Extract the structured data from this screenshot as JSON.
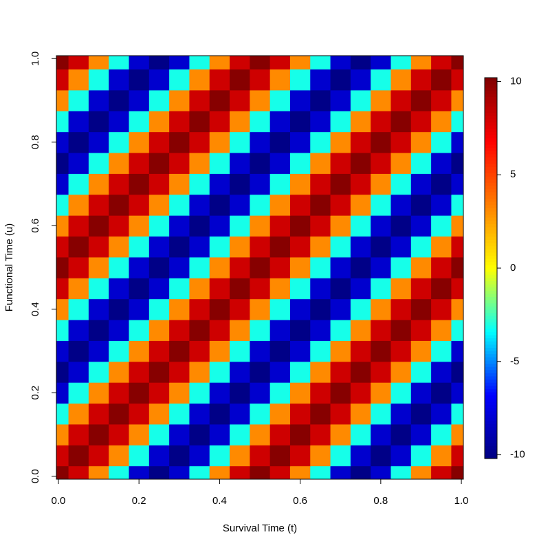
{
  "chart_data": {
    "type": "heatmap",
    "x_label": "Survival Time (t)",
    "y_label": "Functional Time (u)",
    "x": [
      0,
      0.05,
      0.1,
      0.15,
      0.2,
      0.25,
      0.3,
      0.35,
      0.4,
      0.45,
      0.5,
      0.55,
      0.6,
      0.65,
      0.7,
      0.75,
      0.8,
      0.85,
      0.9,
      0.95,
      1
    ],
    "y": [
      0,
      0.05,
      0.1,
      0.15,
      0.2,
      0.25,
      0.3,
      0.35,
      0.4,
      0.45,
      0.5,
      0.55,
      0.6,
      0.65,
      0.7,
      0.75,
      0.8,
      0.85,
      0.9,
      0.95,
      1
    ],
    "z": [
      [
        10,
        8.1,
        3.1,
        -3.1,
        -8.1,
        -10,
        -8.1,
        -3.1,
        3.1,
        8.1,
        10,
        8.1,
        3.1,
        -3.1,
        -8.1,
        -10,
        -8.1,
        -3.1,
        3.1,
        8.1,
        10
      ],
      [
        8.1,
        10,
        8.1,
        3.1,
        -3.1,
        -8.1,
        -10,
        -8.1,
        -3.1,
        3.1,
        8.1,
        10,
        8.1,
        3.1,
        -3.1,
        -8.1,
        -10,
        -8.1,
        -3.1,
        3.1,
        8.1
      ],
      [
        3.1,
        8.1,
        10,
        8.1,
        3.1,
        -3.1,
        -8.1,
        -10,
        -8.1,
        -3.1,
        3.1,
        8.1,
        10,
        8.1,
        3.1,
        -3.1,
        -8.1,
        -10,
        -8.1,
        -3.1,
        3.1
      ],
      [
        -3.1,
        3.1,
        8.1,
        10,
        8.1,
        3.1,
        -3.1,
        -8.1,
        -10,
        -8.1,
        -3.1,
        3.1,
        8.1,
        10,
        8.1,
        3.1,
        -3.1,
        -8.1,
        -10,
        -8.1,
        -3.1
      ],
      [
        -8.1,
        -3.1,
        3.1,
        8.1,
        10,
        8.1,
        3.1,
        -3.1,
        -8.1,
        -10,
        -8.1,
        -3.1,
        3.1,
        8.1,
        10,
        8.1,
        3.1,
        -3.1,
        -8.1,
        -10,
        -8.1
      ],
      [
        -10,
        -8.1,
        -3.1,
        3.1,
        8.1,
        10,
        8.1,
        3.1,
        -3.1,
        -8.1,
        -10,
        -8.1,
        -3.1,
        3.1,
        8.1,
        10,
        8.1,
        3.1,
        -3.1,
        -8.1,
        -10
      ],
      [
        -8.1,
        -10,
        -8.1,
        -3.1,
        3.1,
        8.1,
        10,
        8.1,
        3.1,
        -3.1,
        -8.1,
        -10,
        -8.1,
        -3.1,
        3.1,
        8.1,
        10,
        8.1,
        3.1,
        -3.1,
        -8.1
      ],
      [
        -3.1,
        -8.1,
        -10,
        -8.1,
        -3.1,
        3.1,
        8.1,
        10,
        8.1,
        3.1,
        -3.1,
        -8.1,
        -10,
        -8.1,
        -3.1,
        3.1,
        8.1,
        10,
        8.1,
        3.1,
        -3.1
      ],
      [
        3.1,
        -3.1,
        -8.1,
        -10,
        -8.1,
        -3.1,
        3.1,
        8.1,
        10,
        8.1,
        3.1,
        -3.1,
        -8.1,
        -10,
        -8.1,
        -3.1,
        3.1,
        8.1,
        10,
        8.1,
        3.1
      ],
      [
        8.1,
        3.1,
        -3.1,
        -8.1,
        -10,
        -8.1,
        -3.1,
        3.1,
        8.1,
        10,
        8.1,
        3.1,
        -3.1,
        -8.1,
        -10,
        -8.1,
        -3.1,
        3.1,
        8.1,
        10,
        8.1
      ],
      [
        10,
        8.1,
        3.1,
        -3.1,
        -8.1,
        -10,
        -8.1,
        -3.1,
        3.1,
        8.1,
        10,
        8.1,
        3.1,
        -3.1,
        -8.1,
        -10,
        -8.1,
        -3.1,
        3.1,
        8.1,
        10
      ],
      [
        8.1,
        10,
        8.1,
        3.1,
        -3.1,
        -8.1,
        -10,
        -8.1,
        -3.1,
        3.1,
        8.1,
        10,
        8.1,
        3.1,
        -3.1,
        -8.1,
        -10,
        -8.1,
        -3.1,
        3.1,
        8.1
      ],
      [
        3.1,
        8.1,
        10,
        8.1,
        3.1,
        -3.1,
        -8.1,
        -10,
        -8.1,
        -3.1,
        3.1,
        8.1,
        10,
        8.1,
        3.1,
        -3.1,
        -8.1,
        -10,
        -8.1,
        -3.1,
        3.1
      ],
      [
        -3.1,
        3.1,
        8.1,
        10,
        8.1,
        3.1,
        -3.1,
        -8.1,
        -10,
        -8.1,
        -3.1,
        3.1,
        8.1,
        10,
        8.1,
        3.1,
        -3.1,
        -8.1,
        -10,
        -8.1,
        -3.1
      ],
      [
        -8.1,
        -3.1,
        3.1,
        8.1,
        10,
        8.1,
        3.1,
        -3.1,
        -8.1,
        -10,
        -8.1,
        -3.1,
        3.1,
        8.1,
        10,
        8.1,
        3.1,
        -3.1,
        -8.1,
        -10,
        -8.1
      ],
      [
        -10,
        -8.1,
        -3.1,
        3.1,
        8.1,
        10,
        8.1,
        3.1,
        -3.1,
        -8.1,
        -10,
        -8.1,
        -3.1,
        3.1,
        8.1,
        10,
        8.1,
        3.1,
        -3.1,
        -8.1,
        -10
      ],
      [
        -8.1,
        -10,
        -8.1,
        -3.1,
        3.1,
        8.1,
        10,
        8.1,
        3.1,
        -3.1,
        -8.1,
        -10,
        -8.1,
        -3.1,
        3.1,
        8.1,
        10,
        8.1,
        3.1,
        -3.1,
        -8.1
      ],
      [
        -3.1,
        -8.1,
        -10,
        -8.1,
        -3.1,
        3.1,
        8.1,
        10,
        8.1,
        3.1,
        -3.1,
        -8.1,
        -10,
        -8.1,
        -3.1,
        3.1,
        8.1,
        10,
        8.1,
        3.1,
        -3.1
      ],
      [
        3.1,
        -3.1,
        -8.1,
        -10,
        -8.1,
        -3.1,
        3.1,
        8.1,
        10,
        8.1,
        3.1,
        -3.1,
        -8.1,
        -10,
        -8.1,
        -3.1,
        3.1,
        8.1,
        10,
        8.1,
        3.1
      ],
      [
        8.1,
        3.1,
        -3.1,
        -8.1,
        -10,
        -8.1,
        -3.1,
        3.1,
        8.1,
        10,
        8.1,
        3.1,
        -3.1,
        -8.1,
        -10,
        -8.1,
        -3.1,
        3.1,
        8.1,
        10,
        8.1
      ],
      [
        10,
        8.1,
        3.1,
        -3.1,
        -8.1,
        -10,
        -8.1,
        -3.1,
        3.1,
        8.1,
        10,
        8.1,
        3.1,
        -3.1,
        -8.1,
        -10,
        -8.1,
        -3.1,
        3.1,
        8.1,
        10
      ]
    ],
    "xlim": [
      -0.005,
      1.005
    ],
    "ylim": [
      -0.007,
      1.007
    ],
    "xticks": [
      {
        "value": 0,
        "label": "0.0"
      },
      0.2,
      0.4,
      0.6,
      0.8,
      {
        "value": 1,
        "label": "1.0"
      }
    ],
    "yticks": [
      {
        "value": 0,
        "label": "0.0"
      },
      0.2,
      0.4,
      0.6,
      0.8,
      {
        "value": 1,
        "label": "1.0"
      }
    ],
    "zlim": [
      -10.2,
      10.2
    ],
    "zticks": [
      -10,
      -5,
      0,
      5,
      10
    ],
    "colors": [
      "#00007f",
      "#0000ff",
      "#00ffff",
      "#ffff00",
      "#ff7f00",
      "#ff0000",
      "#7f0000"
    ]
  }
}
